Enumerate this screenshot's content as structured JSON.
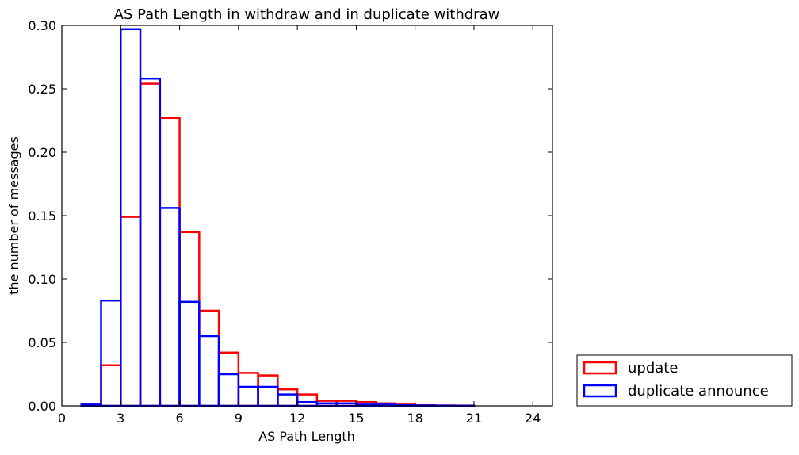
{
  "chart_data": {
    "type": "bar",
    "histtype": "step",
    "title": "AS Path Length in withdraw and in duplicate withdraw",
    "xlabel": "AS Path Length",
    "ylabel": "the number of messages",
    "xlim": [
      0,
      25
    ],
    "ylim": [
      0,
      0.3
    ],
    "xticks": [
      "0",
      "3",
      "6",
      "9",
      "12",
      "15",
      "18",
      "21",
      "24"
    ],
    "xtick_values": [
      0,
      3,
      6,
      9,
      12,
      15,
      18,
      21,
      24
    ],
    "yticks": [
      "0.00",
      "0.05",
      "0.10",
      "0.15",
      "0.20",
      "0.25",
      "0.30"
    ],
    "ytick_values": [
      0,
      0.05,
      0.1,
      0.15,
      0.2,
      0.25,
      0.3
    ],
    "grid": false,
    "legend_position": "outside-bottom-right",
    "bin_edges": [
      1,
      2,
      3,
      4,
      5,
      6,
      7,
      8,
      9,
      10,
      11,
      12,
      13,
      14,
      15,
      16,
      17,
      18,
      19,
      20,
      21
    ],
    "series": [
      {
        "name": "update",
        "color": "#ff0000",
        "values": [
          0.001,
          0.032,
          0.149,
          0.254,
          0.227,
          0.137,
          0.075,
          0.042,
          0.026,
          0.024,
          0.013,
          0.009,
          0.004,
          0.004,
          0.003,
          0.002,
          0.001,
          0.0005,
          0.0003,
          0.0002
        ]
      },
      {
        "name": "duplicate announce",
        "color": "#0000ff",
        "values": [
          0.001,
          0.083,
          0.297,
          0.258,
          0.156,
          0.082,
          0.055,
          0.025,
          0.015,
          0.015,
          0.009,
          0.003,
          0.002,
          0.002,
          0.001,
          0.001,
          0.0005,
          0.0003,
          0.0002,
          0.0001
        ]
      }
    ]
  }
}
